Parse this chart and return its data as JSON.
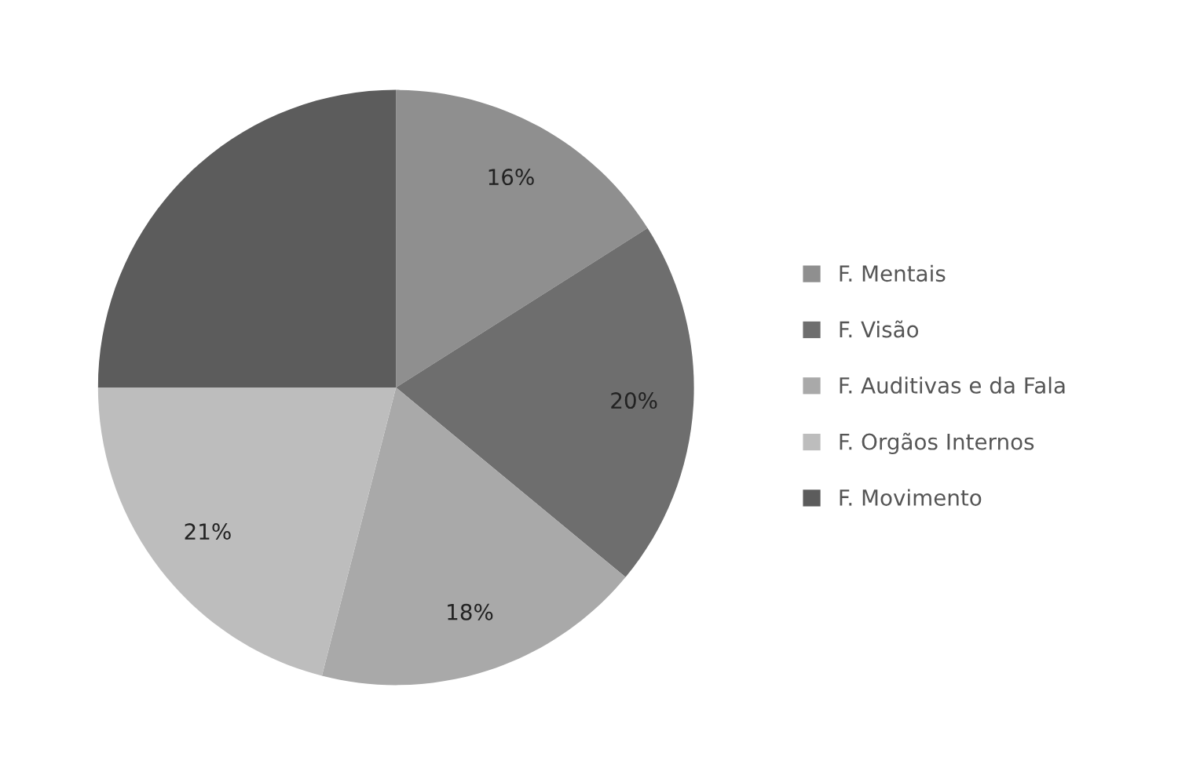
{
  "chart_data": {
    "type": "pie",
    "categories": [
      "F. Mentais",
      "F. Visão",
      "F. Auditivas e da Fala",
      "F. Orgãos Internos",
      "F. Movimento"
    ],
    "values": [
      16,
      20,
      18,
      21,
      25
    ],
    "value_labels": [
      "16%",
      "20%",
      "18%",
      "21%",
      null
    ],
    "colors": [
      "#8f8f8f",
      "#6e6e6e",
      "#a9a9a9",
      "#bdbdbd",
      "#5c5c5c"
    ],
    "legend": "right"
  }
}
